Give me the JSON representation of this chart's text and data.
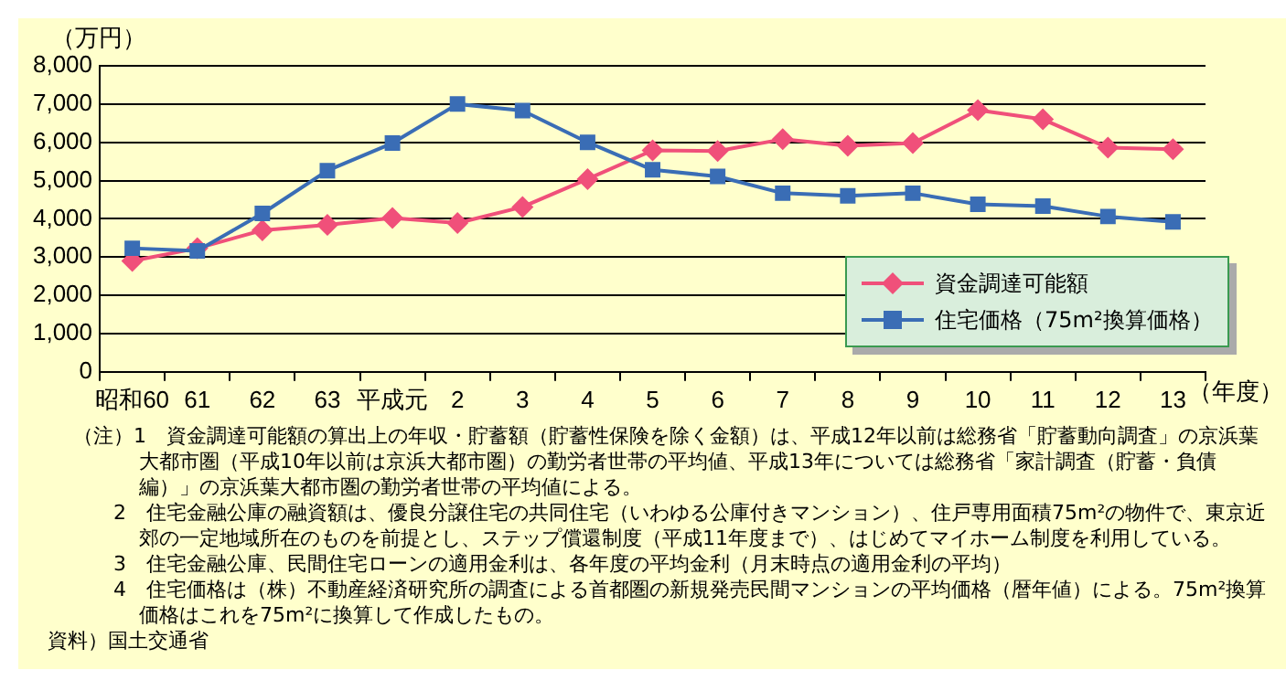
{
  "chart_data": {
    "type": "line",
    "ylabel": "（万円）",
    "xlabel": "（年度）",
    "categories": [
      "昭和60",
      "61",
      "62",
      "63",
      "平成元",
      "2",
      "3",
      "4",
      "5",
      "6",
      "7",
      "8",
      "9",
      "10",
      "11",
      "12",
      "13"
    ],
    "series": [
      {
        "name": "資金調達可能額",
        "color": "#f0507a",
        "marker": "diamond",
        "values": [
          2900,
          3230,
          3700,
          3840,
          4020,
          3890,
          4310,
          5040,
          5790,
          5770,
          6080,
          5910,
          5980,
          6840,
          6600,
          5860,
          5820
        ]
      },
      {
        "name": "住宅価格（75m²換算価格）",
        "color": "#3a6db5",
        "marker": "square",
        "values": [
          3230,
          3160,
          4140,
          5260,
          5980,
          7000,
          6830,
          6000,
          5280,
          5110,
          4670,
          4600,
          4670,
          4380,
          4330,
          4060,
          3920
        ]
      }
    ],
    "ylim": [
      0,
      8000
    ],
    "yticks": [
      0,
      {
        "value": 1000,
        "label": "1,000"
      },
      {
        "value": 2000,
        "label": "2,000"
      },
      {
        "value": 3000,
        "label": "3,000"
      },
      {
        "value": 4000,
        "label": "4,000"
      },
      {
        "value": 5000,
        "label": "5,000"
      },
      {
        "value": 6000,
        "label": "6,000"
      },
      {
        "value": 7000,
        "label": "7,000"
      },
      {
        "value": 8000,
        "label": "8,000"
      }
    ],
    "grid": "y",
    "legend": "bottom right",
    "annotations": [
      "（注）1　資金調達可能額の算出上の年収・貯蓄額（貯蓄性保険を除く金額）は、平成12年以前は総務省「貯蓄動向調査」の京浜葉大都市圏（平成10年以前は京浜大都市圏）の勤労者世帯の平均値、平成13年については総務省「家計調査（貯蓄・負債編）」の京浜葉大都市圏の勤労者世帯の平均値による。",
      "2　住宅金融公庫の融資額は、優良分譲住宅の共同住宅（いわゆる公庫付きマンション）、住戸専用面積75m²の物件で、東京近郊の一定地域所在のものを前提とし、ステップ償還制度（平成11年度まで）、はじめてマイホーム制度を利用している。",
      "3　住宅金融公庫、民間住宅ローンの適用金利は、各年度の平均金利（月末時点の適用金利の平均）",
      "4　住宅価格は（株）不動産経済研究所の調査による首都圏の新規発売民間マンションの平均価格（暦年値）による。75m²換算価格はこれを75m²に換算して作成したもの。",
      "資料）国土交通省"
    ]
  }
}
